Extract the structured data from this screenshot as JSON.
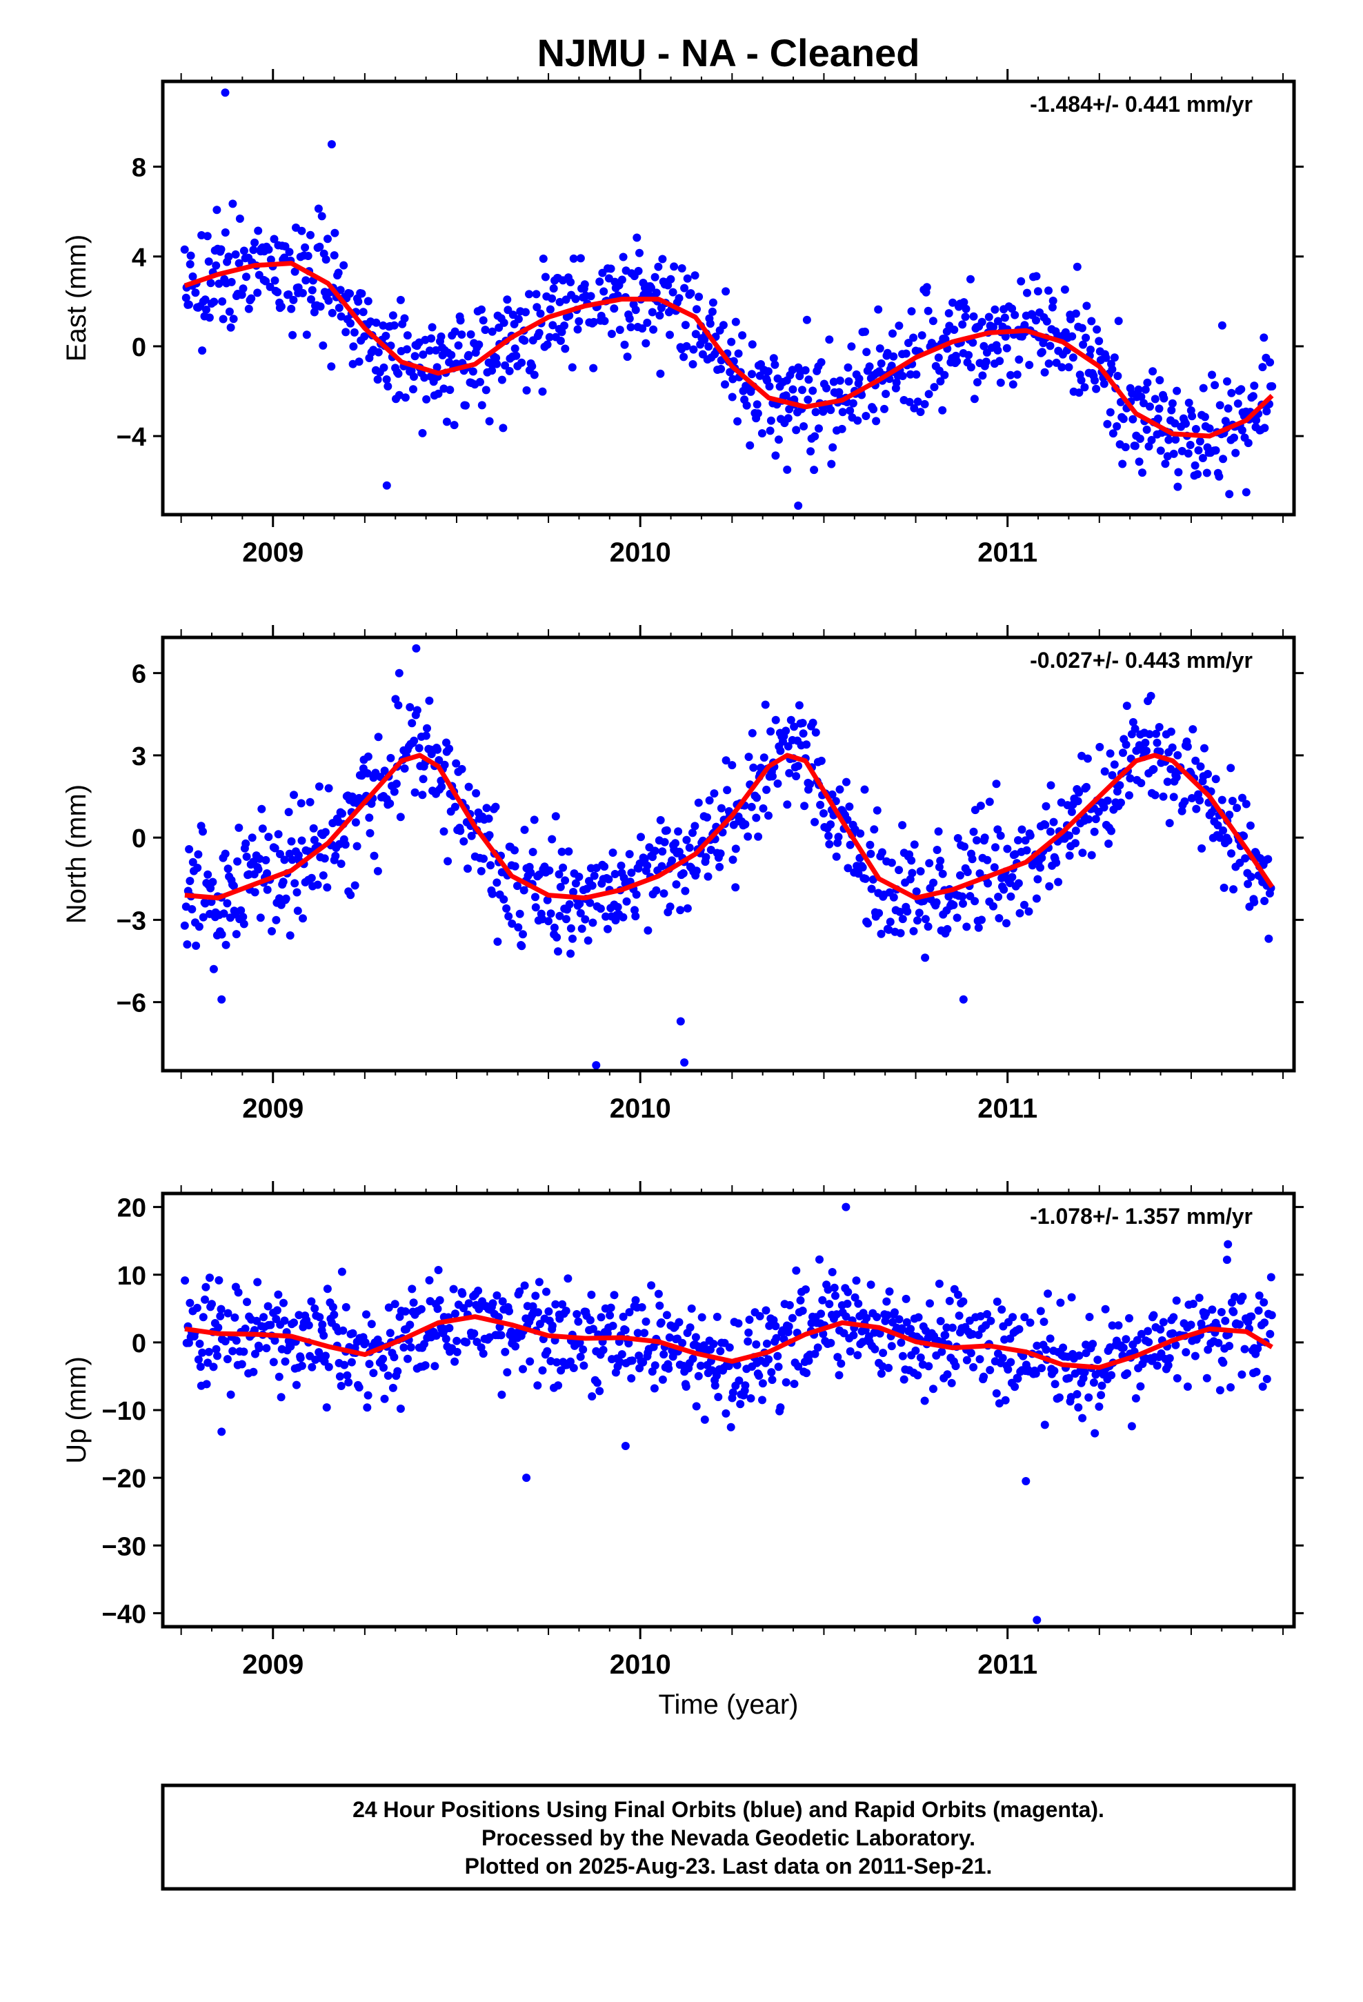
{
  "figure": {
    "title": "NJMU  - NA - Cleaned",
    "xlabel": "Time (year)",
    "footer_lines": [
      "24 Hour Positions Using Final Orbits (blue) and Rapid Orbits (magenta).",
      "Processed by the Nevada Geodetic Laboratory.",
      "Plotted on 2025-Aug-23. Last data on 2011-Sep-21."
    ],
    "colors": {
      "points": "#0000ff",
      "fit": "#ff0000",
      "axes": "#000000"
    }
  },
  "chart_data": [
    {
      "type": "scatter",
      "component": "East",
      "ylabel": "East (mm)",
      "rate_label": "-1.484+/- 0.441 mm/yr",
      "xlim": [
        2008.7,
        2011.78
      ],
      "ylim": [
        -7.5,
        11.8
      ],
      "yticks": [
        -4,
        0,
        4,
        8
      ],
      "ytick_labels": [
        "−4",
        "0",
        "4",
        "8"
      ],
      "xticks": [
        2009,
        2010,
        2011
      ],
      "xtick_labels": [
        "2009",
        "2010",
        "2011"
      ],
      "fit_curve": {
        "x": [
          2008.76,
          2008.85,
          2008.95,
          2009.05,
          2009.15,
          2009.25,
          2009.35,
          2009.45,
          2009.55,
          2009.65,
          2009.75,
          2009.85,
          2009.95,
          2010.05,
          2010.15,
          2010.25,
          2010.35,
          2010.45,
          2010.55,
          2010.65,
          2010.75,
          2010.85,
          2010.95,
          2011.05,
          2011.15,
          2011.25,
          2011.35,
          2011.45,
          2011.55,
          2011.65,
          2011.72
        ],
        "y": [
          2.7,
          3.2,
          3.6,
          3.7,
          2.8,
          0.8,
          -0.7,
          -1.2,
          -0.8,
          0.4,
          1.3,
          1.8,
          2.1,
          2.1,
          1.3,
          -0.9,
          -2.3,
          -2.7,
          -2.4,
          -1.5,
          -0.5,
          0.2,
          0.6,
          0.7,
          0.2,
          -0.9,
          -3.0,
          -3.9,
          -4.0,
          -3.3,
          -2.2
        ]
      },
      "scatter_params": {
        "n": 1050,
        "x_start": 2008.76,
        "x_end": 2011.72,
        "noise_sd": 1.25,
        "seed": 11
      },
      "outliers": [
        {
          "x": 2008.87,
          "y": 11.3
        },
        {
          "x": 2009.16,
          "y": 9.0
        },
        {
          "x": 2009.31,
          "y": -6.2
        },
        {
          "x": 2010.43,
          "y": -7.1
        },
        {
          "x": 2010.4,
          "y": -5.5
        },
        {
          "x": 2011.65,
          "y": -6.5
        }
      ]
    },
    {
      "type": "scatter",
      "component": "North",
      "ylabel": "North (mm)",
      "rate_label": "-0.027+/- 0.443 mm/yr",
      "xlim": [
        2008.7,
        2011.78
      ],
      "ylim": [
        -8.5,
        7.3
      ],
      "yticks": [
        -6,
        -3,
        0,
        3,
        6
      ],
      "ytick_labels": [
        "−6",
        "−3",
        "0",
        "3",
        "6"
      ],
      "xticks": [
        2009,
        2010,
        2011
      ],
      "xtick_labels": [
        "2009",
        "2010",
        "2011"
      ],
      "fit_curve": {
        "x": [
          2008.76,
          2008.85,
          2008.95,
          2009.05,
          2009.15,
          2009.25,
          2009.35,
          2009.4,
          2009.45,
          2009.55,
          2009.65,
          2009.75,
          2009.85,
          2009.95,
          2010.05,
          2010.15,
          2010.25,
          2010.35,
          2010.4,
          2010.45,
          2010.55,
          2010.65,
          2010.75,
          2010.85,
          2010.95,
          2011.05,
          2011.15,
          2011.25,
          2011.35,
          2011.4,
          2011.45,
          2011.55,
          2011.65,
          2011.72
        ],
        "y": [
          -2.1,
          -2.2,
          -1.7,
          -1.2,
          -0.2,
          1.3,
          2.8,
          3.0,
          2.6,
          0.4,
          -1.4,
          -2.1,
          -2.2,
          -1.9,
          -1.4,
          -0.6,
          0.8,
          2.6,
          3.0,
          2.8,
          0.6,
          -1.5,
          -2.2,
          -1.9,
          -1.4,
          -0.9,
          0.2,
          1.5,
          2.8,
          3.0,
          2.8,
          1.5,
          -0.4,
          -1.8
        ]
      },
      "scatter_params": {
        "n": 1050,
        "x_start": 2008.76,
        "x_end": 2011.72,
        "noise_sd": 1.05,
        "seed": 23
      },
      "outliers": [
        {
          "x": 2008.86,
          "y": -5.9
        },
        {
          "x": 2009.88,
          "y": -8.3
        },
        {
          "x": 2010.12,
          "y": -8.2
        },
        {
          "x": 2010.11,
          "y": -6.7
        },
        {
          "x": 2010.88,
          "y": -5.9
        },
        {
          "x": 2009.39,
          "y": 6.9
        }
      ]
    },
    {
      "type": "scatter",
      "component": "Up",
      "ylabel": "Up (mm)",
      "rate_label": "-1.078+/- 1.357 mm/yr",
      "xlim": [
        2008.7,
        2011.78
      ],
      "ylim": [
        -42,
        22
      ],
      "yticks": [
        -40,
        -30,
        -20,
        -10,
        0,
        10,
        20
      ],
      "ytick_labels": [
        "−40",
        "−30",
        "−20",
        "−10",
        "0",
        "10",
        "20"
      ],
      "xticks": [
        2009,
        2010,
        2011
      ],
      "xtick_labels": [
        "2009",
        "2010",
        "2011"
      ],
      "fit_curve": {
        "x": [
          2008.76,
          2008.85,
          2008.95,
          2009.05,
          2009.15,
          2009.25,
          2009.35,
          2009.45,
          2009.55,
          2009.65,
          2009.75,
          2009.85,
          2009.95,
          2010.05,
          2010.15,
          2010.25,
          2010.35,
          2010.45,
          2010.55,
          2010.65,
          2010.75,
          2010.85,
          2010.95,
          2011.05,
          2011.15,
          2011.25,
          2011.35,
          2011.45,
          2011.55,
          2011.65,
          2011.72
        ],
        "y": [
          2.0,
          1.3,
          1.2,
          0.9,
          -0.6,
          -1.8,
          0.4,
          2.9,
          3.8,
          2.6,
          1.0,
          0.6,
          0.7,
          0.1,
          -1.6,
          -2.8,
          -1.4,
          1.2,
          2.9,
          2.2,
          0.1,
          -0.8,
          -0.5,
          -1.4,
          -3.3,
          -3.7,
          -2.0,
          0.3,
          2.0,
          1.6,
          -0.7
        ]
      },
      "scatter_params": {
        "n": 1050,
        "x_start": 2008.76,
        "x_end": 2011.72,
        "noise_sd": 3.8,
        "seed": 37
      },
      "outliers": [
        {
          "x": 2008.86,
          "y": -13.2
        },
        {
          "x": 2009.69,
          "y": -20.0
        },
        {
          "x": 2009.96,
          "y": -15.3
        },
        {
          "x": 2011.05,
          "y": -20.5
        },
        {
          "x": 2011.08,
          "y": -41.0
        },
        {
          "x": 2010.56,
          "y": 20.0
        },
        {
          "x": 2011.6,
          "y": 14.5
        }
      ]
    }
  ]
}
